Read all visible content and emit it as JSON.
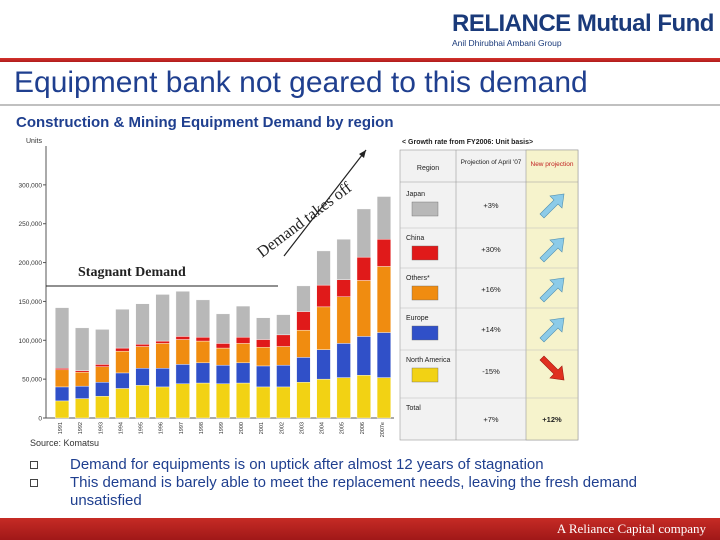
{
  "header": {
    "logo_main": "RELIANCE Mutual Fund",
    "logo_sub": "Anil Dhirubhai Ambani Group"
  },
  "slide": {
    "title": "Equipment bank not geared to this demand",
    "subtitle": "Construction & Mining Equipment Demand by region",
    "source": "Source: Komatsu",
    "bullets": [
      "Demand for equipments is on uptick after almost 12 years of stagnation",
      "This demand is barely able to meet the replacement needs, leaving the fresh demand unsatisfied"
    ],
    "footer": "A Reliance Capital company"
  },
  "chart_data": {
    "type": "bar",
    "stacked": true,
    "y_axis_title": "Units",
    "ylim": [
      0,
      350000
    ],
    "y_ticks": [
      "0",
      "50,000",
      "100,000",
      "150,000",
      "200,000",
      "250,000",
      "300,000"
    ],
    "categories": [
      "1991",
      "1992",
      "1993",
      "1994",
      "1995",
      "1996",
      "1997",
      "1998",
      "1999",
      "2000",
      "2001",
      "2002",
      "2003",
      "2004",
      "2005",
      "2006",
      "2007e"
    ],
    "series": [
      {
        "name": "North America",
        "color": "#f2d214",
        "values": [
          22000,
          25000,
          28000,
          38000,
          42000,
          40000,
          44000,
          45000,
          44000,
          45000,
          40000,
          40000,
          46000,
          50000,
          52000,
          55000,
          52000
        ]
      },
      {
        "name": "Europe",
        "color": "#3050c8",
        "values": [
          18000,
          16000,
          18000,
          20000,
          22000,
          24000,
          25000,
          26000,
          24000,
          26000,
          27000,
          28000,
          32000,
          38000,
          44000,
          50000,
          58000
        ]
      },
      {
        "name": "Others*",
        "color": "#f08c10",
        "values": [
          22000,
          18000,
          20000,
          28000,
          28000,
          32000,
          32000,
          28000,
          22000,
          25000,
          24000,
          24000,
          35000,
          55000,
          60000,
          72000,
          85000
        ]
      },
      {
        "name": "China",
        "color": "#e01a1a",
        "values": [
          2000,
          2000,
          3000,
          4000,
          3000,
          3000,
          4000,
          5000,
          6000,
          8000,
          10000,
          15000,
          24000,
          28000,
          22000,
          30000,
          35000
        ]
      },
      {
        "name": "Japan",
        "color": "#b8b8b8",
        "values": [
          78000,
          55000,
          45000,
          50000,
          52000,
          60000,
          58000,
          48000,
          38000,
          40000,
          28000,
          26000,
          33000,
          44000,
          52000,
          62000,
          55000
        ]
      }
    ],
    "annotations": {
      "stagnant": "Stagnant Demand",
      "takeoff": "Demand takes off"
    },
    "growth_table": {
      "heading": "< Growth rate from FY2006: Unit basis>",
      "col_region": "Region",
      "col_projection": "Projection of April '07",
      "col_new": "New projection",
      "rows": [
        {
          "region": "Japan",
          "color": "#b8b8b8",
          "projection": "+3%",
          "trend": "up"
        },
        {
          "region": "China",
          "color": "#e01a1a",
          "projection": "+30%",
          "trend": "up"
        },
        {
          "region": "Others*",
          "color": "#f08c10",
          "projection": "+16%",
          "trend": "up"
        },
        {
          "region": "Europe",
          "color": "#3050c8",
          "projection": "+14%",
          "trend": "up"
        },
        {
          "region": "North America",
          "color": "#f2d214",
          "projection": "-15%",
          "trend": "down"
        },
        {
          "region": "Total",
          "color": "",
          "projection": "+7%",
          "new": "+12%",
          "trend": ""
        }
      ]
    }
  }
}
